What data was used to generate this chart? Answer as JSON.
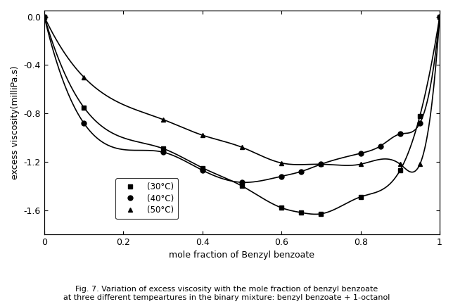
{
  "xlabel": "mole fraction of Benzyl benzoate",
  "ylabel": "excess viscosity(milliPa.s)",
  "xlim": [
    0,
    1
  ],
  "ylim": [
    -1.8,
    0.05
  ],
  "yticks": [
    0.0,
    -0.4,
    -0.8,
    -1.2,
    -1.6
  ],
  "xticks": [
    0.0,
    0.2,
    0.4,
    0.6,
    0.8,
    1.0
  ],
  "caption": "Fig. 7. Variation of excess viscosity with the mole fraction of benzyl benzoate\nat three different tempeartures in the binary mixture: benzyl benzoate + 1-octanol",
  "series": [
    {
      "label": "(30°C)",
      "marker": "s",
      "x": [
        0.0,
        0.1,
        0.3,
        0.4,
        0.5,
        0.6,
        0.65,
        0.7,
        0.8,
        0.9,
        0.95,
        1.0
      ],
      "y": [
        0.0,
        -0.75,
        -1.09,
        -1.25,
        -1.4,
        -1.58,
        -1.62,
        -1.63,
        -1.49,
        -1.27,
        -0.82,
        0.0
      ]
    },
    {
      "label": "(40°C)",
      "marker": "o",
      "x": [
        0.0,
        0.1,
        0.3,
        0.4,
        0.5,
        0.6,
        0.65,
        0.7,
        0.8,
        0.85,
        0.9,
        0.95,
        1.0
      ],
      "y": [
        0.0,
        -0.88,
        -1.12,
        -1.27,
        -1.37,
        -1.32,
        -1.28,
        -1.22,
        -1.13,
        -1.07,
        -0.97,
        -0.88,
        0.0
      ]
    },
    {
      "label": "(50°C)",
      "marker": "^",
      "x": [
        0.0,
        0.1,
        0.3,
        0.4,
        0.5,
        0.6,
        0.7,
        0.8,
        0.9,
        0.95,
        1.0
      ],
      "y": [
        0.0,
        -0.5,
        -0.85,
        -0.98,
        -1.08,
        -1.21,
        -1.22,
        -1.22,
        -1.22,
        -1.22,
        0.0
      ]
    }
  ],
  "line_color": "#000000",
  "background_color": "#ffffff"
}
